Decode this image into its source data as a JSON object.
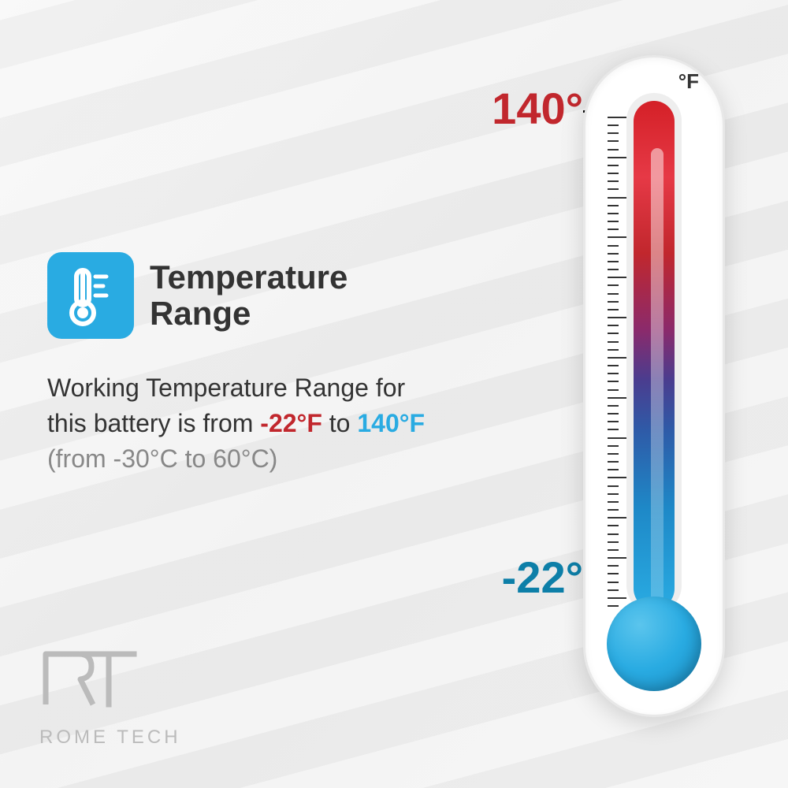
{
  "title": "Temperature Range",
  "description": {
    "prefix": "Working Temperature Range for this battery is from ",
    "low_f": "-22°F",
    "mid": " to ",
    "high_f": "140°F",
    "celsius": "(from -30°C to 60°C)"
  },
  "thermometer": {
    "unit": "°F",
    "high_label": "140°",
    "low_label": "-22°",
    "high_color": "#c1272d",
    "low_color": "#0d7fa8",
    "gradient_colors": [
      "#d42027",
      "#e63946",
      "#c1272d",
      "#8b2a6b",
      "#4a3d8f",
      "#2e5ba8",
      "#1e88c7",
      "#29abe2"
    ],
    "bulb_color": "#29abe2",
    "tick_count": 62,
    "major_every": 5
  },
  "icon": {
    "name": "thermometer-icon",
    "bg_color": "#29abe2"
  },
  "logo": {
    "mark": "RT",
    "text": "ROME TECH"
  },
  "colors": {
    "background": "#f0f0f0",
    "text": "#333333",
    "muted": "#888888",
    "red": "#c1272d",
    "blue": "#29abe2"
  }
}
